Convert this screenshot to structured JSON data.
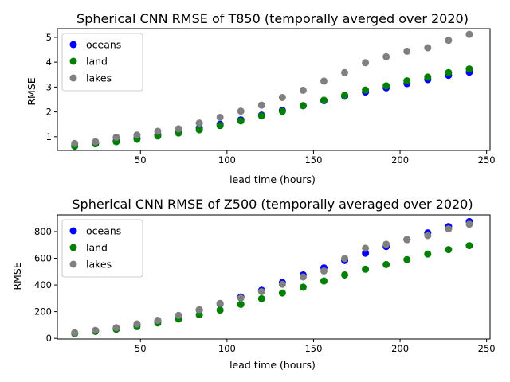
{
  "chart_data": [
    {
      "type": "scatter",
      "title": "Spherical CNN RMSE of T850 (temporally averged over 2020)",
      "xlabel": "lead time (hours)",
      "ylabel": "RMSE",
      "xlim": [
        2,
        252
      ],
      "ylim": [
        0.45,
        5.35
      ],
      "xticks": [
        50,
        100,
        150,
        200,
        250
      ],
      "yticks": [
        1,
        2,
        3,
        4,
        5
      ],
      "grid": false,
      "legend": "upper left",
      "x": [
        12,
        24,
        36,
        48,
        60,
        72,
        84,
        96,
        108,
        120,
        132,
        144,
        156,
        168,
        180,
        192,
        204,
        216,
        228,
        240
      ],
      "series": [
        {
          "name": "oceans",
          "color": "#0000ff",
          "values": [
            0.65,
            0.72,
            0.83,
            0.95,
            1.08,
            1.2,
            1.35,
            1.5,
            1.68,
            1.87,
            2.06,
            2.25,
            2.45,
            2.63,
            2.8,
            2.97,
            3.14,
            3.3,
            3.47,
            3.6
          ]
        },
        {
          "name": "land",
          "color": "#008000",
          "values": [
            0.62,
            0.72,
            0.8,
            0.9,
            1.03,
            1.15,
            1.28,
            1.45,
            1.64,
            1.84,
            2.02,
            2.25,
            2.47,
            2.67,
            2.88,
            3.05,
            3.25,
            3.4,
            3.58,
            3.73
          ]
        },
        {
          "name": "lakes",
          "color": "#808080",
          "values": [
            0.73,
            0.8,
            0.98,
            1.07,
            1.22,
            1.32,
            1.55,
            1.78,
            2.03,
            2.27,
            2.58,
            2.87,
            3.24,
            3.58,
            3.98,
            4.22,
            4.44,
            4.58,
            4.88,
            5.12
          ]
        }
      ]
    },
    {
      "type": "scatter",
      "title": "Spherical CNN RMSE of Z500 (temporally averaged over 2020)",
      "xlabel": "lead time (hours)",
      "ylabel": "RMSE",
      "xlim": [
        2,
        252
      ],
      "ylim": [
        -5,
        925
      ],
      "xticks": [
        50,
        100,
        150,
        200,
        250
      ],
      "yticks": [
        0,
        200,
        400,
        600,
        800
      ],
      "grid": false,
      "legend": "upper left",
      "x": [
        12,
        24,
        36,
        48,
        60,
        72,
        84,
        96,
        108,
        120,
        132,
        144,
        156,
        168,
        180,
        192,
        204,
        216,
        228,
        240
      ],
      "series": [
        {
          "name": "oceans",
          "color": "#0000ff",
          "values": [
            40,
            57,
            76,
            102,
            130,
            168,
            212,
            258,
            310,
            360,
            418,
            475,
            528,
            583,
            638,
            688,
            740,
            790,
            838,
            875
          ]
        },
        {
          "name": "land",
          "color": "#008000",
          "values": [
            35,
            52,
            68,
            88,
            115,
            145,
            176,
            212,
            255,
            297,
            340,
            383,
            430,
            475,
            518,
            553,
            590,
            632,
            665,
            695
          ]
        },
        {
          "name": "lakes",
          "color": "#808080",
          "values": [
            42,
            60,
            80,
            108,
            135,
            172,
            215,
            262,
            302,
            350,
            405,
            460,
            505,
            598,
            675,
            705,
            740,
            770,
            820,
            855
          ]
        }
      ]
    }
  ]
}
